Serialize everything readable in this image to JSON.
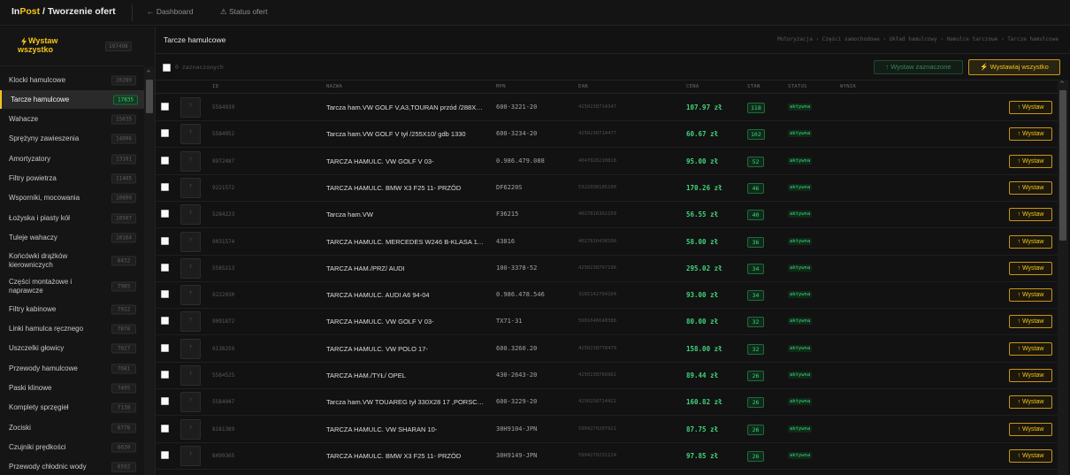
{
  "header": {
    "brand_in": "In",
    "brand_post": "Post",
    "brand_rest": " / Tworzenie ofert",
    "nav_dashboard": "← Dashboard",
    "nav_status": "⚠ Status ofert"
  },
  "sidebar": {
    "publish_all_label": "Wystaw wszystko",
    "publish_all_count": "197498",
    "categories": [
      {
        "name": "Klocki hamulcowe",
        "count": "20289"
      },
      {
        "name": "Tarcze hamulcowe",
        "count": "17835",
        "active": true
      },
      {
        "name": "Wahacze",
        "count": "15635"
      },
      {
        "name": "Sprężyny zawieszenia",
        "count": "14096"
      },
      {
        "name": "Amortyzatory",
        "count": "13101"
      },
      {
        "name": "Filtry powietrza",
        "count": "11485"
      },
      {
        "name": "Wsporniki, mocowania",
        "count": "10899"
      },
      {
        "name": "Łożyska i piasty kół",
        "count": "10507"
      },
      {
        "name": "Tuleje wahaczy",
        "count": "10164"
      },
      {
        "name": "Końcówki drążków kierowniczych",
        "count": "8432"
      },
      {
        "name": "Części montażowe i naprawcze",
        "count": "7985"
      },
      {
        "name": "Filtry kabinowe",
        "count": "7922"
      },
      {
        "name": "Linki hamulca ręcznego",
        "count": "7878"
      },
      {
        "name": "Uszczelki głowicy",
        "count": "7827"
      },
      {
        "name": "Przewody hamulcowe",
        "count": "7681"
      },
      {
        "name": "Paski klinowe",
        "count": "7495"
      },
      {
        "name": "Komplety sprzęgieł",
        "count": "7138"
      },
      {
        "name": "Zociski",
        "count": "6778"
      },
      {
        "name": "Czujniki prędkości",
        "count": "6630"
      },
      {
        "name": "Przewody chłodnic wody",
        "count": "6592"
      }
    ]
  },
  "main": {
    "title": "Tarcze hamulcowe",
    "breadcrumb": "Motoryzacja › Części samochodowe › Układ hamulcowy › Hamulce tarczowe › Tarcze hamulcowe",
    "selected_count": "0 zaznaczonych",
    "btn_publish_selected": "↑ Wystaw zaznaczone",
    "btn_publish_all": "⚡ Wystawiaj wszystko",
    "columns": [
      "ID",
      "NAZWA",
      "MPN",
      "EAN",
      "CENA",
      "STAN",
      "STATUS",
      "WYNIK"
    ],
    "row_button_label": "↑ Wystaw",
    "thumb_placeholder": "?",
    "rows": [
      {
        "id": "5584939",
        "name": "Tarcza ham.VW GOLF V,A3,TOURAN przód /288X25/ gdb 1330",
        "mpn": "600-3221-20",
        "ean": "4250238714347",
        "price": "107.97 zł",
        "stock": "118",
        "status": "aktywna"
      },
      {
        "id": "5584952",
        "name": "Tarcza ham.VW GOLF V tył /255X10/ gdb 1330",
        "mpn": "600-3234-20",
        "ean": "4250238714477",
        "price": "60.67 zł",
        "stock": "102",
        "status": "aktywna"
      },
      {
        "id": "8972487",
        "name": "TARCZA HAMULC. VW GOLF V 03-",
        "mpn": "0.986.479.088",
        "ean": "4047026210828",
        "price": "95.00 zł",
        "stock": "52",
        "status": "aktywna"
      },
      {
        "id": "9221572",
        "name": "TARCZA HAMULC. BMW X3 F25 11- PRZÓD",
        "mpn": "DF6220S",
        "ean": "5322938185190",
        "price": "170.26 zł",
        "stock": "46",
        "status": "aktywna"
      },
      {
        "id": "5284223",
        "name": "Tarcza ham.VW",
        "mpn": "F36215",
        "ean": "4027816362159",
        "price": "56.55 zł",
        "stock": "40",
        "status": "aktywna"
      },
      {
        "id": "9031574",
        "name": "TARCZA HAMULC. MERCEDES W246 B-KLASA 11- PRZÓD",
        "mpn": "43816",
        "ean": "4027816438168",
        "price": "58.00 zł",
        "stock": "36",
        "status": "aktywna"
      },
      {
        "id": "5585213",
        "name": "TARCZA HAM./PRZ/ AUDI",
        "mpn": "100-3378-52",
        "ean": "4250238767196",
        "price": "295.02 zł",
        "stock": "34",
        "status": "aktywna"
      },
      {
        "id": "9222030",
        "name": "TARCZA HAMULC. AUDI A6 94-04",
        "mpn": "0.986.478.546",
        "ean": "3165142704104",
        "price": "93.00 zł",
        "stock": "34",
        "status": "aktywna"
      },
      {
        "id": "9091872",
        "name": "TARCZA HAMULC. VW GOLF V 03-",
        "mpn": "TX71-31",
        "ean": "5901646648388",
        "price": "80.00 zł",
        "stock": "32",
        "status": "aktywna"
      },
      {
        "id": "9138259",
        "name": "TARCZA HAMULC. VW POLO 17-",
        "mpn": "600.3260.20",
        "ean": "4250238778479",
        "price": "158.00 zł",
        "stock": "32",
        "status": "aktywna"
      },
      {
        "id": "5584525",
        "name": "TARCZA HAM./TYŁ/ OPEL",
        "mpn": "430-2643-20",
        "ean": "4250238766902",
        "price": "89.44 zł",
        "stock": "26",
        "status": "aktywna"
      },
      {
        "id": "5584947",
        "name": "Tarcza ham.VW TOUAREG tył 330X28 17 ,PORSCHE",
        "mpn": "600-3229-20",
        "ean": "4250238714422",
        "price": "160.82 zł",
        "stock": "26",
        "status": "aktywna"
      },
      {
        "id": "8181389",
        "name": "TARCZA HAMULC. VW SHARAN 10-",
        "mpn": "30H9104-JPN",
        "ean": "5904270207921",
        "price": "87.75 zł",
        "stock": "26",
        "status": "aktywna"
      },
      {
        "id": "8499365",
        "name": "TARCZA HAMULC. BMW X3 F25 11- PRZÓD",
        "mpn": "30H9149-JPN",
        "ean": "5904270231124",
        "price": "97.85 zł",
        "stock": "26",
        "status": "aktywna"
      }
    ]
  },
  "colors": {
    "accent_yellow": "#f5c518",
    "accent_green": "#3fd47a",
    "background": "#121212"
  }
}
